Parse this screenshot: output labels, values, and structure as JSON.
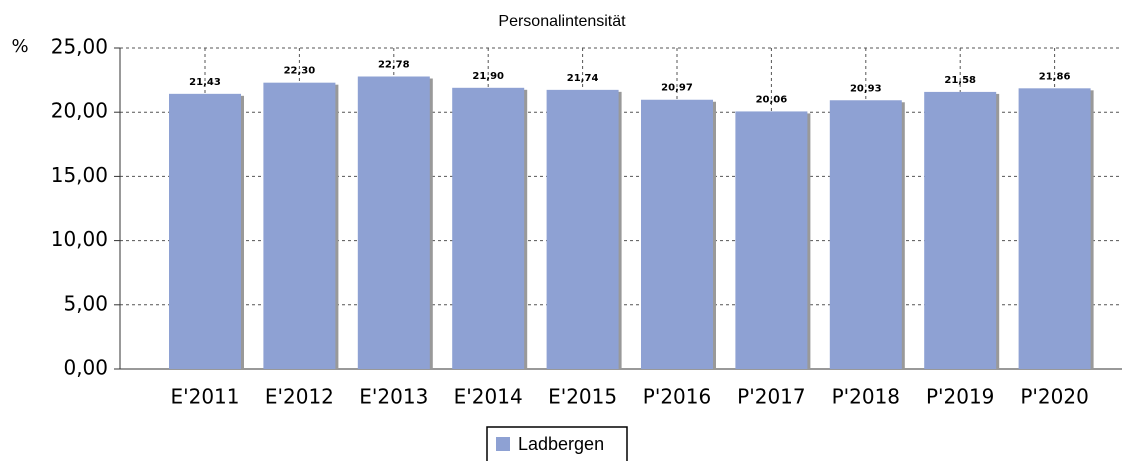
{
  "chart_data": {
    "type": "bar",
    "title": "Personalintensität",
    "y_unit": "%",
    "categories": [
      "E'2011",
      "E'2012",
      "E'2013",
      "E'2014",
      "E'2015",
      "P'2016",
      "P'2017",
      "P'2018",
      "P'2019",
      "P'2020"
    ],
    "series": [
      {
        "name": "Ladbergen",
        "color": "#8ea1d3",
        "values": [
          21.43,
          22.3,
          22.78,
          21.9,
          21.74,
          20.97,
          20.06,
          20.93,
          21.58,
          21.86
        ],
        "value_labels": [
          "21,43",
          "22,30",
          "22,78",
          "21,90",
          "21,74",
          "20,97",
          "20,06",
          "20,93",
          "21,58",
          "21,86"
        ]
      }
    ],
    "ylim": [
      0,
      25
    ],
    "yticks": [
      {
        "value": 0,
        "label": "0,00"
      },
      {
        "value": 5,
        "label": "5,00"
      },
      {
        "value": 10,
        "label": "10,00"
      },
      {
        "value": 15,
        "label": "15,00"
      },
      {
        "value": 20,
        "label": "20,00"
      },
      {
        "value": 25,
        "label": "25,00"
      }
    ],
    "grid": true,
    "legend": "bottom"
  }
}
